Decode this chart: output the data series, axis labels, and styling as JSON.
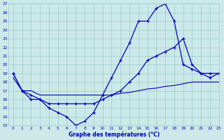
{
  "title": "Graphe des températures (°C)",
  "bg_color": "#cce8e8",
  "line_color": "#0000bb",
  "grid_color": "#99cccc",
  "xlim": [
    -0.5,
    23
  ],
  "ylim": [
    13,
    27
  ],
  "yticks": [
    13,
    14,
    15,
    16,
    17,
    18,
    19,
    20,
    21,
    22,
    23,
    24,
    25,
    26,
    27
  ],
  "xticks": [
    0,
    1,
    2,
    3,
    4,
    5,
    6,
    7,
    8,
    9,
    10,
    11,
    12,
    13,
    14,
    15,
    16,
    17,
    18,
    19,
    20,
    21,
    22,
    23
  ],
  "line1_x": [
    0,
    1,
    2,
    3,
    4,
    5,
    6,
    7,
    8,
    9,
    10,
    11,
    12,
    13,
    14,
    15,
    16,
    17,
    18,
    19,
    20,
    21,
    22,
    23
  ],
  "line1_y": [
    19,
    17,
    16,
    16,
    15,
    14.5,
    14,
    13,
    13.5,
    14.5,
    16.5,
    18.5,
    20.5,
    22.5,
    25,
    25,
    26.5,
    27,
    25,
    20,
    19.5,
    19,
    19,
    19
  ],
  "line2_x": [
    0,
    1,
    2,
    3,
    4,
    5,
    6,
    7,
    8,
    9,
    10,
    11,
    12,
    13,
    14,
    15,
    16,
    17,
    18,
    19,
    20,
    21,
    22,
    23
  ],
  "line2_y": [
    19,
    17,
    16.5,
    16,
    15.5,
    15.5,
    15.5,
    15.5,
    15.5,
    15.5,
    16,
    16.5,
    17,
    18,
    19,
    20.5,
    21,
    21.5,
    22,
    23,
    20,
    19,
    18.5,
    19
  ],
  "line3_x": [
    0,
    1,
    2,
    3,
    4,
    5,
    6,
    7,
    8,
    9,
    10,
    11,
    12,
    13,
    14,
    15,
    16,
    17,
    18,
    19,
    20,
    21,
    22,
    23
  ],
  "line3_y": [
    18.5,
    17,
    17,
    16.5,
    16.5,
    16.5,
    16.5,
    16.5,
    16.5,
    16.5,
    16.5,
    16.5,
    16.7,
    16.8,
    17,
    17.2,
    17.3,
    17.5,
    17.6,
    17.8,
    18,
    18,
    18,
    18
  ]
}
